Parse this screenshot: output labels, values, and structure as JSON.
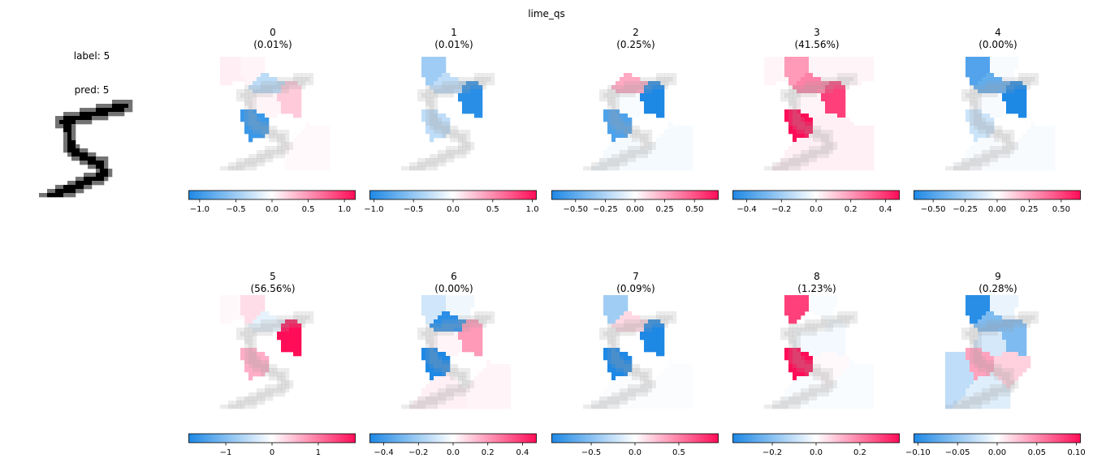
{
  "chart_data": {
    "type": "heatmap",
    "title": "lime_qs",
    "input_panel": {
      "label_text": "label: 5",
      "pred_text": "pred: 5"
    },
    "colormap": {
      "negative": "#1e88e5",
      "zero": "#ffffff",
      "positive": "#ff0d57"
    },
    "panels": [
      {
        "class": "0",
        "prob": "(0.01%)",
        "range": [
          -1.15,
          1.15
        ],
        "ticks": [
          {
            "v": -1.0,
            "t": "−1.0"
          },
          {
            "v": -0.5,
            "t": "−0.5"
          },
          {
            "v": 0.0,
            "t": "0.0"
          },
          {
            "v": 0.5,
            "t": "0.5"
          },
          {
            "v": 1.0,
            "t": "1.0"
          }
        ],
        "segments": [
          0.08,
          0.05,
          0.02,
          0.0,
          -0.35,
          0.0,
          0.0,
          0.25,
          0.05,
          -1.0,
          0.0,
          0.0,
          0.02,
          0.03
        ]
      },
      {
        "class": "1",
        "prob": "(0.01%)",
        "range": [
          -1.05,
          1.05
        ],
        "ticks": [
          {
            "v": -1.0,
            "t": "−1.0"
          },
          {
            "v": -0.5,
            "t": "−0.5"
          },
          {
            "v": 0.0,
            "t": "0.0"
          },
          {
            "v": 0.5,
            "t": "0.5"
          },
          {
            "v": 1.0,
            "t": "1.0"
          }
        ],
        "segments": [
          0.0,
          -0.45,
          -0.02,
          0.0,
          -0.3,
          0.0,
          0.0,
          -1.0,
          -0.02,
          -0.3,
          -0.02,
          0.0,
          0.0,
          0.0
        ]
      },
      {
        "class": "2",
        "prob": "(0.25%)",
        "range": [
          -0.7,
          0.7
        ],
        "ticks": [
          {
            "v": -0.5,
            "t": "−0.50"
          },
          {
            "v": -0.25,
            "t": "−0.25"
          },
          {
            "v": 0.0,
            "t": "0.00"
          },
          {
            "v": 0.25,
            "t": "0.25"
          },
          {
            "v": 0.5,
            "t": "0.50"
          }
        ],
        "segments": [
          0.0,
          0.0,
          0.0,
          0.0,
          0.25,
          0.0,
          0.0,
          -0.7,
          -0.02,
          -0.55,
          0.0,
          0.0,
          -0.03,
          -0.03
        ]
      },
      {
        "class": "3",
        "prob": "(41.56%)",
        "range": [
          -0.48,
          0.48
        ],
        "ticks": [
          {
            "v": -0.4,
            "t": "−0.4"
          },
          {
            "v": -0.2,
            "t": "−0.2"
          },
          {
            "v": 0.0,
            "t": "0.0"
          },
          {
            "v": 0.2,
            "t": "0.2"
          },
          {
            "v": 0.4,
            "t": "0.4"
          }
        ],
        "segments": [
          0.02,
          0.2,
          0.02,
          0.02,
          0.25,
          0.0,
          0.0,
          0.38,
          0.02,
          0.48,
          0.03,
          0.0,
          0.03,
          0.03
        ]
      },
      {
        "class": "4",
        "prob": "(0.00%)",
        "range": [
          -0.65,
          0.65
        ],
        "ticks": [
          {
            "v": -0.5,
            "t": "−0.50"
          },
          {
            "v": -0.25,
            "t": "−0.25"
          },
          {
            "v": 0.0,
            "t": "0.00"
          },
          {
            "v": 0.25,
            "t": "0.25"
          },
          {
            "v": 0.5,
            "t": "0.50"
          }
        ],
        "segments": [
          0.0,
          -0.5,
          -0.02,
          0.0,
          -0.45,
          0.0,
          0.0,
          -0.65,
          -0.02,
          -0.15,
          0.0,
          0.0,
          -0.02,
          -0.02
        ]
      },
      {
        "class": "5",
        "prob": "(56.56%)",
        "range": [
          -1.8,
          1.8
        ],
        "ticks": [
          {
            "v": -1,
            "t": "−1"
          },
          {
            "v": 0,
            "t": "0"
          },
          {
            "v": 1,
            "t": "1"
          }
        ],
        "segments": [
          0.05,
          0.25,
          0.03,
          0.0,
          -0.2,
          0.0,
          0.0,
          1.8,
          0.02,
          0.6,
          0.02,
          0.0,
          0.02,
          0.02
        ]
      },
      {
        "class": "6",
        "prob": "(0.00%)",
        "range": [
          -0.48,
          0.48
        ],
        "ticks": [
          {
            "v": -0.4,
            "t": "−0.4"
          },
          {
            "v": -0.2,
            "t": "−0.2"
          },
          {
            "v": 0.0,
            "t": "0.0"
          },
          {
            "v": 0.2,
            "t": "0.2"
          },
          {
            "v": 0.4,
            "t": "0.4"
          }
        ],
        "segments": [
          0.0,
          -0.1,
          -0.03,
          0.0,
          -0.45,
          0.0,
          0.0,
          0.2,
          0.02,
          -0.48,
          0.0,
          0.0,
          0.03,
          0.02
        ]
      },
      {
        "class": "7",
        "prob": "(0.09%)",
        "range": [
          -0.95,
          0.95
        ],
        "ticks": [
          {
            "v": -0.5,
            "t": "−0.5"
          },
          {
            "v": 0.0,
            "t": "0.0"
          },
          {
            "v": 0.5,
            "t": "0.5"
          }
        ],
        "segments": [
          0.0,
          -0.4,
          0.0,
          0.0,
          0.15,
          0.0,
          0.0,
          -0.95,
          0.0,
          -0.95,
          0.0,
          0.0,
          -0.02,
          -0.02
        ]
      },
      {
        "class": "8",
        "prob": "(1.23%)",
        "range": [
          -0.38,
          0.38
        ],
        "ticks": [
          {
            "v": -0.2,
            "t": "−0.2"
          },
          {
            "v": 0.0,
            "t": "0.0"
          },
          {
            "v": 0.2,
            "t": "0.2"
          }
        ],
        "segments": [
          0.0,
          0.3,
          -0.01,
          0.0,
          0.0,
          0.0,
          0.0,
          -0.02,
          -0.02,
          0.38,
          0.01,
          0.0,
          -0.01,
          -0.01
        ]
      },
      {
        "class": "9",
        "prob": "(0.28%)",
        "range": [
          -0.105,
          0.105
        ],
        "ticks": [
          {
            "v": -0.1,
            "t": "−0.10"
          },
          {
            "v": -0.05,
            "t": "−0.05"
          },
          {
            "v": 0.0,
            "t": "0.00"
          },
          {
            "v": 0.05,
            "t": "0.05"
          },
          {
            "v": 0.1,
            "t": "0.10"
          }
        ],
        "segments": [
          0.0,
          -0.1,
          -0.01,
          0.0,
          -0.06,
          0.0,
          0.0,
          -0.06,
          -0.02,
          0.04,
          0.02,
          -0.03,
          -0.015,
          0.0
        ]
      }
    ]
  }
}
